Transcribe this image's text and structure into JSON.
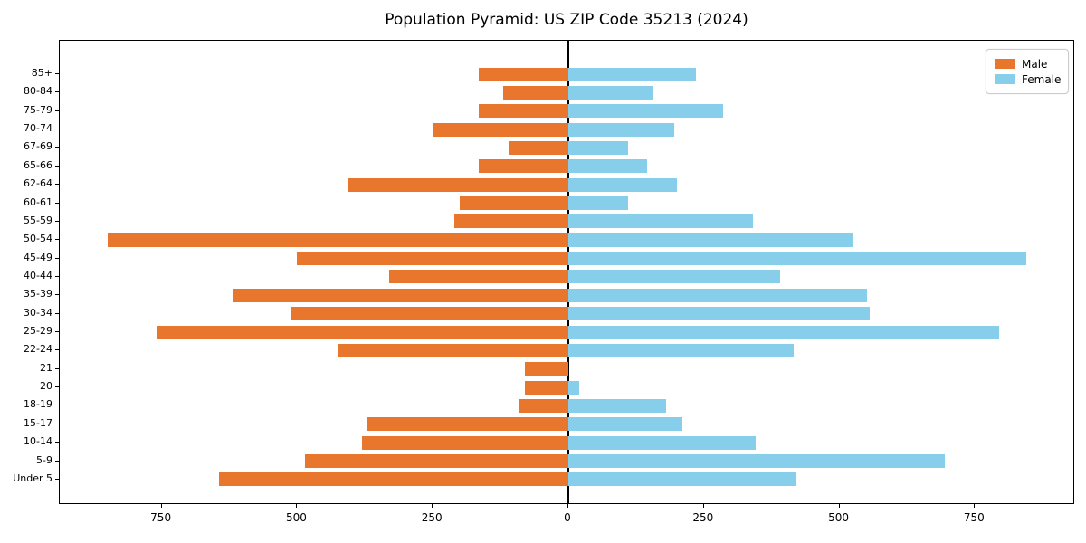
{
  "chart": {
    "title": "Population Pyramid: US ZIP Code 35213 (2024)",
    "legend": {
      "male_label": "Male",
      "female_label": "Female"
    },
    "colors": {
      "male": "#E8772D",
      "female": "#87CEEB",
      "axis": "#000000",
      "legend_border": "#cccccc",
      "background": "#ffffff"
    }
  },
  "chart_data": {
    "type": "bar",
    "variant": "population-pyramid",
    "orientation": "horizontal",
    "title": "Population Pyramid: US ZIP Code 35213 (2024)",
    "xlabel": "",
    "ylabel": "",
    "grid": false,
    "legend_position": "upper right",
    "categories": [
      "85+",
      "80-84",
      "75-79",
      "70-74",
      "67-69",
      "65-66",
      "62-64",
      "60-61",
      "55-59",
      "50-54",
      "45-49",
      "40-44",
      "35-39",
      "30-34",
      "25-29",
      "22-24",
      "21",
      "20",
      "18-19",
      "15-17",
      "10-14",
      "5-9",
      "Under 5"
    ],
    "series": [
      {
        "name": "Male",
        "side": "left",
        "color": "#E8772D",
        "values": [
          165,
          120,
          165,
          250,
          110,
          165,
          405,
          200,
          210,
          850,
          500,
          330,
          620,
          510,
          760,
          425,
          80,
          80,
          90,
          370,
          380,
          485,
          645
        ]
      },
      {
        "name": "Female",
        "side": "right",
        "color": "#87CEEB",
        "values": [
          235,
          155,
          285,
          195,
          110,
          145,
          200,
          110,
          340,
          525,
          845,
          390,
          550,
          555,
          795,
          415,
          0,
          20,
          180,
          210,
          345,
          695,
          420
        ]
      }
    ],
    "x_tick_values": [
      -750,
      -500,
      -250,
      0,
      250,
      500,
      750
    ],
    "x_tick_labels": [
      "750",
      "500",
      "250",
      "0",
      "250",
      "500",
      "750"
    ],
    "xlim": [
      -938,
      938
    ]
  }
}
